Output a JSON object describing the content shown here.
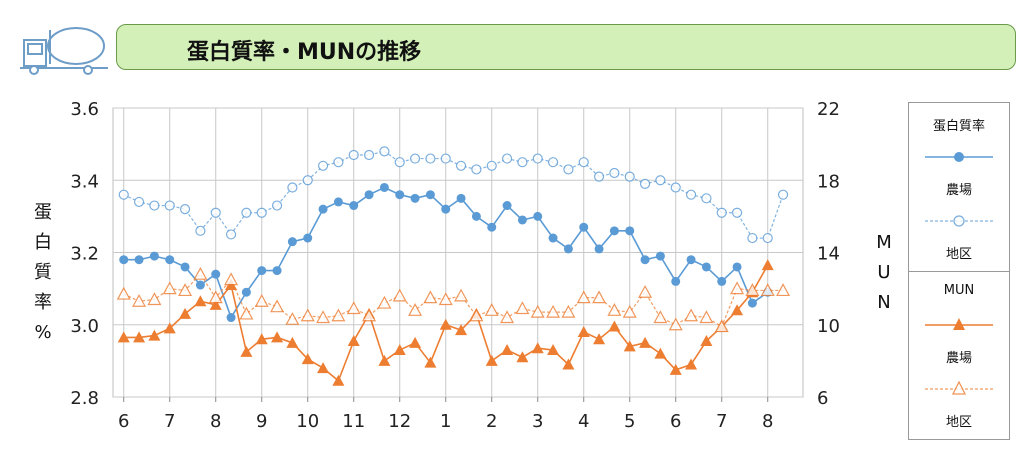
{
  "header": {
    "title": "蛋白質率・MUNの推移",
    "icon": "milk-tanker-icon"
  },
  "colors": {
    "protein": "#5b9bd5",
    "mun": "#ed7d31",
    "title_bg": "#d2f0b8",
    "grid": "#c8c8c8"
  },
  "y_axis_left_title": [
    "蛋",
    "白",
    "質",
    "率",
    "%"
  ],
  "y_axis_right_title": [
    "M",
    "U",
    "N"
  ],
  "legend": {
    "protein_title": "蛋白質率",
    "protein_farm": "農場",
    "protein_area": "地区",
    "mun_title": "MUN",
    "mun_farm": "農場",
    "mun_area": "地区"
  },
  "chart_data": {
    "type": "line",
    "x_tick_labels": [
      "6",
      "7",
      "8",
      "9",
      "10",
      "11",
      "12",
      "1",
      "2",
      "3",
      "4",
      "5",
      "6",
      "7",
      "8"
    ],
    "x_tick_positions": [
      0,
      3,
      6,
      9,
      12,
      15,
      18,
      21,
      24,
      27,
      30,
      33,
      36,
      39,
      42
    ],
    "xlim": [
      -0.7,
      44.3
    ],
    "y_left": {
      "label": "蛋白質率%",
      "lim": [
        2.8,
        3.6
      ],
      "ticks": [
        "2.8",
        "3.0",
        "3.2",
        "3.4",
        "3.6"
      ]
    },
    "y_right": {
      "label": "MUN",
      "lim": [
        6,
        22
      ],
      "ticks": [
        "6",
        "10",
        "14",
        "18",
        "22"
      ]
    },
    "grid": true,
    "legend_position": "right",
    "series": [
      {
        "name": "蛋白質率 農場",
        "axis": "left",
        "style": "solid-filled-circle",
        "x": [
          0,
          1,
          2,
          3,
          4,
          5,
          6,
          7,
          8,
          9,
          10,
          11,
          12,
          13,
          14,
          15,
          16,
          17,
          18,
          19,
          20,
          21,
          22,
          23,
          24,
          25,
          26,
          27,
          28,
          29,
          30,
          31,
          32,
          33,
          34,
          35,
          36,
          37,
          38,
          39,
          40,
          41,
          42
        ],
        "values": [
          3.18,
          3.18,
          3.19,
          3.18,
          3.16,
          3.11,
          3.14,
          3.02,
          3.09,
          3.15,
          3.15,
          3.23,
          3.24,
          3.32,
          3.34,
          3.33,
          3.36,
          3.38,
          3.36,
          3.35,
          3.36,
          3.32,
          3.35,
          3.3,
          3.27,
          3.33,
          3.29,
          3.3,
          3.24,
          3.21,
          3.27,
          3.21,
          3.26,
          3.26,
          3.18,
          3.19,
          3.12,
          3.18,
          3.16,
          3.12,
          3.16,
          3.06,
          3.09
        ]
      },
      {
        "name": "蛋白質率 地区",
        "axis": "left",
        "style": "dashed-open-circle",
        "x": [
          0,
          1,
          2,
          3,
          4,
          5,
          6,
          7,
          8,
          9,
          10,
          11,
          12,
          13,
          14,
          15,
          16,
          17,
          18,
          19,
          20,
          21,
          22,
          23,
          24,
          25,
          26,
          27,
          28,
          29,
          30,
          31,
          32,
          33,
          34,
          35,
          36,
          37,
          38,
          39,
          40,
          41,
          42,
          43
        ],
        "values": [
          3.36,
          3.34,
          3.33,
          3.33,
          3.32,
          3.26,
          3.31,
          3.25,
          3.31,
          3.31,
          3.33,
          3.38,
          3.4,
          3.44,
          3.45,
          3.47,
          3.47,
          3.48,
          3.45,
          3.46,
          3.46,
          3.46,
          3.44,
          3.43,
          3.44,
          3.46,
          3.45,
          3.46,
          3.45,
          3.43,
          3.45,
          3.41,
          3.42,
          3.41,
          3.39,
          3.4,
          3.38,
          3.36,
          3.35,
          3.31,
          3.31,
          3.24,
          3.24,
          3.36
        ]
      },
      {
        "name": "MUN 農場",
        "axis": "right",
        "style": "solid-filled-triangle",
        "x": [
          0,
          1,
          2,
          3,
          4,
          5,
          6,
          7,
          8,
          9,
          10,
          11,
          12,
          13,
          14,
          15,
          16,
          17,
          18,
          19,
          20,
          21,
          22,
          23,
          24,
          25,
          26,
          27,
          28,
          29,
          30,
          31,
          32,
          33,
          34,
          35,
          36,
          37,
          38,
          39,
          40,
          41,
          42
        ],
        "values": [
          9.3,
          9.3,
          9.4,
          9.8,
          10.6,
          11.3,
          11.1,
          12.2,
          8.5,
          9.2,
          9.3,
          9.0,
          8.1,
          7.6,
          6.9,
          9.1,
          10.6,
          8.0,
          8.6,
          9.0,
          7.9,
          10.0,
          9.7,
          10.6,
          8.0,
          8.6,
          8.2,
          8.7,
          8.6,
          7.8,
          9.6,
          9.2,
          9.9,
          8.8,
          9.0,
          8.4,
          7.5,
          7.8,
          9.1,
          9.9,
          10.8,
          11.8,
          13.3
        ]
      },
      {
        "name": "MUN 地区",
        "axis": "right",
        "style": "dashed-open-triangle",
        "x": [
          0,
          1,
          2,
          3,
          4,
          5,
          6,
          7,
          8,
          9,
          10,
          11,
          12,
          13,
          14,
          15,
          16,
          17,
          18,
          19,
          20,
          21,
          22,
          23,
          24,
          25,
          26,
          27,
          28,
          29,
          30,
          31,
          32,
          33,
          34,
          35,
          36,
          37,
          38,
          39,
          40,
          41,
          42,
          43
        ],
        "values": [
          11.7,
          11.3,
          11.4,
          12.0,
          11.9,
          12.8,
          11.5,
          12.5,
          10.6,
          11.3,
          11.0,
          10.3,
          10.5,
          10.4,
          10.5,
          10.9,
          10.5,
          11.2,
          11.6,
          10.8,
          11.5,
          11.4,
          11.6,
          10.5,
          10.8,
          10.4,
          10.9,
          10.7,
          10.7,
          10.7,
          11.5,
          11.5,
          10.8,
          10.7,
          11.8,
          10.4,
          10.0,
          10.5,
          10.4,
          9.9,
          12.0,
          11.9,
          11.9,
          11.9
        ]
      }
    ]
  }
}
